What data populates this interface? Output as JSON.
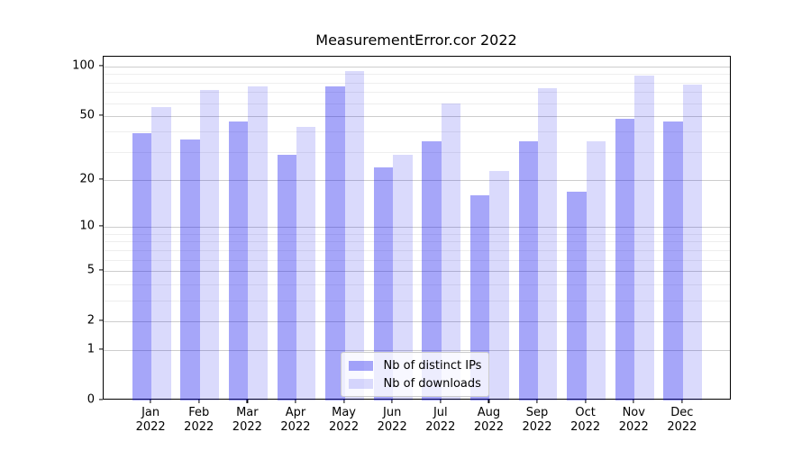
{
  "title": "MeasurementError.cor 2022",
  "chart_data": {
    "type": "bar",
    "title": "MeasurementError.cor 2022",
    "categories": [
      "Jan",
      "Feb",
      "Mar",
      "Apr",
      "May",
      "Jun",
      "Jul",
      "Aug",
      "Sep",
      "Oct",
      "Nov",
      "Dec"
    ],
    "category_year": "2022",
    "series": [
      {
        "name": "Nb of distinct IPs",
        "color": "rgba(8,8,238,0.36)",
        "color_hex_on_white": "#a6a6f9",
        "values": [
          39,
          36,
          46,
          29,
          76,
          24,
          35,
          16,
          35,
          17,
          48,
          46
        ]
      },
      {
        "name": "Nb of downloads",
        "color": "rgba(8,8,238,0.15)",
        "color_hex_on_white": "#dadafc",
        "values": [
          57,
          72,
          76,
          43,
          94,
          29,
          60,
          23,
          74,
          35,
          88,
          78
        ]
      }
    ],
    "xlabel": "",
    "ylabel": "",
    "y_scale": "log1p",
    "y_ticks": [
      0,
      1,
      2,
      5,
      10,
      20,
      50,
      100
    ],
    "y_minor_ticks": [
      3,
      4,
      6,
      7,
      8,
      9,
      30,
      40,
      60,
      70,
      80,
      90
    ],
    "ylim": [
      0,
      115
    ],
    "grid": true,
    "legend_position": "lower center",
    "colors": {
      "major_grid": "#cdcdcd",
      "minor_grid": "#eeeeee",
      "spine": "#000000",
      "background": "#ffffff"
    }
  }
}
